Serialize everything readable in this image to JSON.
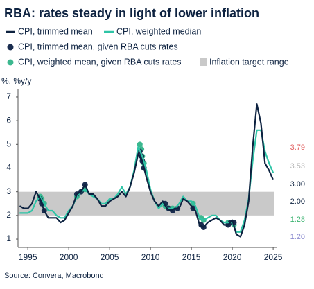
{
  "chart_data": {
    "type": "line",
    "title": "RBA: rates steady in light of lower inflation",
    "y_label": "%, %y/y",
    "source": "Source: Convera, Macrobond",
    "xlim": [
      1993.8,
      2025.5
    ],
    "xticks": [
      1995,
      2000,
      2005,
      2010,
      2015,
      2020,
      2025
    ],
    "ylim": [
      0.65,
      7.35
    ],
    "yticks": [
      1,
      2,
      3,
      4,
      5,
      6,
      7
    ],
    "bands": [
      {
        "name": "Inflation target range",
        "range": [
          2,
          3
        ],
        "color": "#c9c9c9"
      }
    ],
    "series": [
      {
        "name": "CPI, trimmed mean",
        "style": "line",
        "color": "#0d2240",
        "x": [
          1994,
          1994.5,
          1995,
          1995.5,
          1996,
          1996.5,
          1997,
          1997.5,
          1998,
          1998.5,
          1999,
          1999.5,
          2000,
          2000.5,
          2001,
          2001.5,
          2002,
          2002.5,
          2003,
          2003.5,
          2004,
          2004.5,
          2005,
          2005.5,
          2006,
          2006.5,
          2007,
          2007.5,
          2008,
          2008.5,
          2009,
          2009.5,
          2010,
          2010.5,
          2011,
          2011.5,
          2012,
          2012.5,
          2013,
          2013.5,
          2014,
          2014.5,
          2015,
          2015.5,
          2016,
          2016.5,
          2017,
          2017.5,
          2018,
          2018.5,
          2019,
          2019.5,
          2020,
          2020.5,
          2021,
          2021.5,
          2022,
          2022.5,
          2023,
          2023.5,
          2024,
          2024.5,
          2025
        ],
        "values": [
          2.4,
          2.3,
          2.3,
          2.5,
          3.0,
          2.7,
          2.2,
          1.9,
          1.9,
          1.9,
          1.7,
          1.8,
          2.1,
          2.4,
          2.9,
          3.0,
          3.3,
          2.9,
          2.9,
          2.7,
          2.4,
          2.4,
          2.6,
          2.7,
          2.8,
          3.0,
          2.8,
          3.2,
          3.8,
          4.6,
          4.3,
          3.6,
          3.0,
          2.6,
          2.4,
          2.6,
          2.3,
          2.2,
          2.3,
          2.3,
          2.7,
          2.6,
          2.4,
          2.2,
          1.6,
          1.5,
          1.7,
          1.8,
          1.9,
          1.8,
          1.6,
          1.6,
          1.8,
          1.2,
          1.1,
          1.6,
          2.6,
          4.9,
          6.7,
          5.9,
          4.2,
          3.9,
          3.5
        ]
      },
      {
        "name": "CPI, weighted median",
        "style": "line",
        "color": "#2ec4a6",
        "x": [
          1994,
          1994.5,
          1995,
          1995.5,
          1996,
          1996.5,
          1997,
          1997.5,
          1998,
          1998.5,
          1999,
          1999.5,
          2000,
          2000.5,
          2001,
          2001.5,
          2002,
          2002.5,
          2003,
          2003.5,
          2004,
          2004.5,
          2005,
          2005.5,
          2006,
          2006.5,
          2007,
          2007.5,
          2008,
          2008.5,
          2009,
          2009.5,
          2010,
          2010.5,
          2011,
          2011.5,
          2012,
          2012.5,
          2013,
          2013.5,
          2014,
          2014.5,
          2015,
          2015.5,
          2016,
          2016.5,
          2017,
          2017.5,
          2018,
          2018.5,
          2019,
          2019.5,
          2020,
          2020.5,
          2021,
          2021.5,
          2022,
          2022.5,
          2023,
          2023.5,
          2024,
          2024.5,
          2025
        ],
        "values": [
          2.1,
          2.1,
          2.1,
          2.2,
          2.6,
          2.8,
          2.5,
          2.2,
          2.2,
          2.0,
          1.9,
          1.9,
          2.2,
          2.4,
          2.8,
          3.0,
          3.1,
          2.9,
          2.8,
          2.7,
          2.5,
          2.5,
          2.7,
          2.7,
          2.9,
          3.2,
          2.9,
          3.2,
          3.9,
          4.9,
          4.5,
          3.9,
          3.1,
          2.6,
          2.3,
          2.5,
          2.3,
          2.3,
          2.3,
          2.5,
          2.8,
          2.6,
          2.6,
          2.4,
          1.9,
          1.8,
          1.9,
          2.0,
          2.0,
          1.8,
          1.7,
          1.7,
          1.7,
          1.3,
          1.3,
          1.8,
          2.7,
          4.3,
          5.6,
          5.6,
          4.7,
          4.2,
          3.8
        ]
      },
      {
        "name": "CPI, trimmed mean, given RBA cuts rates",
        "style": "dots",
        "color": "#1a2d4f",
        "x": [
          1996.5,
          1996.7,
          1997,
          2001,
          2001.5,
          2002,
          2008.7,
          2008.9,
          2009,
          2009.2,
          2011.8,
          2012.2,
          2012.7,
          2013.3,
          2015.2,
          2016.2,
          2016.5,
          2019.5,
          2019.8,
          2020.2
        ],
        "values": [
          2.7,
          2.5,
          2.2,
          2.9,
          3.0,
          3.3,
          4.7,
          4.5,
          4.3,
          4.0,
          2.5,
          2.3,
          2.2,
          2.3,
          2.3,
          1.6,
          1.5,
          1.6,
          1.7,
          1.7
        ]
      },
      {
        "name": "CPI, weighted mean, given RBA cuts rates",
        "style": "dots",
        "color": "#3cb88f",
        "x": [
          1996.5,
          1996.7,
          1997,
          2001,
          2001.5,
          2002,
          2008.7,
          2008.9,
          2009,
          2009.2,
          2011.8,
          2012.2,
          2012.7,
          2013.3,
          2015.2,
          2016.2,
          2016.5,
          2019.5,
          2019.8,
          2020.2
        ],
        "values": [
          2.8,
          2.7,
          2.5,
          2.8,
          3.0,
          3.1,
          5.0,
          4.8,
          4.5,
          4.2,
          2.4,
          2.3,
          2.3,
          2.3,
          2.5,
          1.9,
          1.8,
          1.7,
          1.7,
          1.6
        ]
      }
    ],
    "annotations": [
      {
        "text": "3.79",
        "color": "#e05a5a"
      },
      {
        "text": "3.53",
        "color": "#b4b4b4"
      },
      {
        "text": "3.00",
        "color": "#0d2240"
      },
      {
        "text": "2.00",
        "color": "#0d2240"
      },
      {
        "text": "1.28",
        "color": "#3cb371"
      },
      {
        "text": "1.20",
        "color": "#8c8cd0"
      }
    ]
  }
}
